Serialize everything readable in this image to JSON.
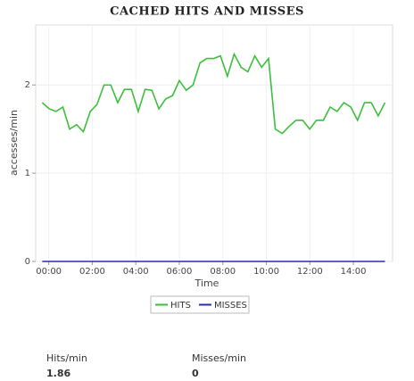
{
  "chart_data": {
    "type": "line",
    "title": "CACHED HITS AND MISSES",
    "x_label": "Time",
    "y_label": "accesses/min",
    "x": [
      -0.3,
      0.02,
      0.33,
      0.65,
      0.96,
      1.28,
      1.59,
      1.91,
      2.22,
      2.54,
      2.85,
      3.17,
      3.48,
      3.8,
      4.11,
      4.43,
      4.74,
      5.06,
      5.37,
      5.69,
      6.0,
      6.32,
      6.63,
      6.95,
      7.26,
      7.58,
      7.89,
      8.21,
      8.52,
      8.84,
      9.15,
      9.47,
      9.78,
      10.1,
      10.41,
      10.73,
      11.04,
      11.36,
      11.67,
      11.99,
      12.3,
      12.62,
      12.93,
      13.25,
      13.56,
      13.88,
      14.19,
      14.51,
      14.82,
      15.14,
      15.45
    ],
    "series": [
      {
        "name": "HITS",
        "color": "#3cbf3c",
        "values": [
          1.8,
          1.73,
          1.7,
          1.75,
          1.5,
          1.55,
          1.47,
          1.7,
          1.78,
          2.0,
          2.0,
          1.8,
          1.95,
          1.95,
          1.7,
          1.95,
          1.94,
          1.73,
          1.84,
          1.88,
          2.05,
          1.94,
          2.0,
          2.25,
          2.3,
          2.3,
          2.33,
          2.1,
          2.35,
          2.2,
          2.15,
          2.33,
          2.2,
          2.3,
          1.5,
          1.45,
          1.53,
          1.6,
          1.6,
          1.5,
          1.6,
          1.6,
          1.75,
          1.7,
          1.8,
          1.75,
          1.6,
          1.8,
          1.8,
          1.65,
          1.8
        ]
      },
      {
        "name": "MISSES",
        "color": "#2a2ab0",
        "values": [
          0,
          0,
          0,
          0,
          0,
          0,
          0,
          0,
          0,
          0,
          0,
          0,
          0,
          0,
          0,
          0,
          0,
          0,
          0,
          0,
          0,
          0,
          0,
          0,
          0,
          0,
          0,
          0,
          0,
          0,
          0,
          0,
          0,
          0,
          0,
          0,
          0,
          0,
          0,
          0,
          0,
          0,
          0,
          0,
          0,
          0,
          0,
          0,
          0,
          0,
          0
        ]
      }
    ],
    "xlim": [
      -0.6,
      15.8
    ],
    "ylim": [
      0,
      2.68
    ],
    "xticks": [
      {
        "value": 0,
        "label": "00:00"
      },
      {
        "value": 2,
        "label": "02:00"
      },
      {
        "value": 4,
        "label": "04:00"
      },
      {
        "value": 6,
        "label": "06:00"
      },
      {
        "value": 8,
        "label": "08:00"
      },
      {
        "value": 10,
        "label": "10:00"
      },
      {
        "value": 12,
        "label": "12:00"
      },
      {
        "value": 14,
        "label": "14:00"
      }
    ],
    "yticks": [
      0,
      1,
      2
    ],
    "grid": true
  },
  "stats": [
    {
      "label": "Hits/min",
      "value": 1.86
    },
    {
      "label": "Misses/min",
      "value": 0
    }
  ]
}
